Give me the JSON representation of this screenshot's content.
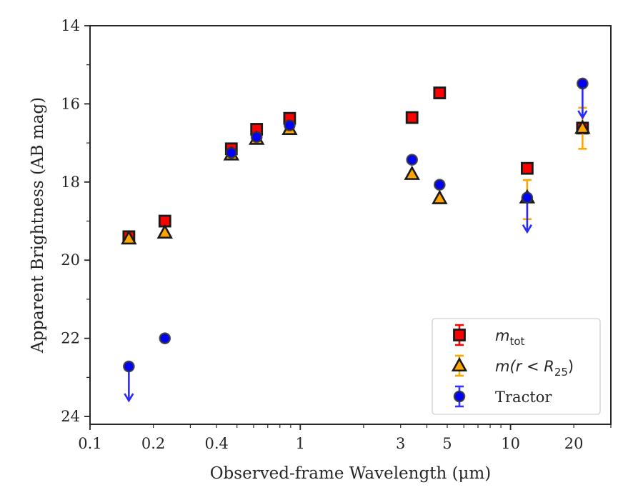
{
  "chart_data": {
    "type": "scatter",
    "title": "",
    "xlabel": "Observed-frame Wavelength (μm)",
    "ylabel": "Apparent Brightness (AB mag)",
    "xscale": "log",
    "xlim": [
      0.1,
      30
    ],
    "ylim": [
      24.2,
      14
    ],
    "y_inverted": true,
    "grid": false,
    "legend_position": "lower-right",
    "x_ticks": [
      {
        "value": 0.1,
        "label": "0.1"
      },
      {
        "value": 0.2,
        "label": "0.2"
      },
      {
        "value": 0.4,
        "label": "0.4"
      },
      {
        "value": 1,
        "label": "1"
      },
      {
        "value": 3,
        "label": "3"
      },
      {
        "value": 5,
        "label": "5"
      },
      {
        "value": 10,
        "label": "10"
      },
      {
        "value": 20,
        "label": "20"
      }
    ],
    "y_ticks": [
      {
        "value": 14,
        "label": "14"
      },
      {
        "value": 16,
        "label": "16"
      },
      {
        "value": 18,
        "label": "18"
      },
      {
        "value": 20,
        "label": "20"
      },
      {
        "value": 22,
        "label": "22"
      },
      {
        "value": 24,
        "label": "24"
      }
    ],
    "series": [
      {
        "name": "m_tot",
        "legend_math": "m",
        "legend_sub": "tot",
        "marker": "square",
        "face_color": "#ff0000",
        "edge_color": "#1a1a1a",
        "error_color": "#ff0000",
        "points": [
          {
            "x": 0.153,
            "y": 19.4
          },
          {
            "x": 0.227,
            "y": 19.0
          },
          {
            "x": 0.47,
            "y": 17.15
          },
          {
            "x": 0.62,
            "y": 16.65
          },
          {
            "x": 0.89,
            "y": 16.37
          },
          {
            "x": 3.4,
            "y": 16.35
          },
          {
            "x": 4.6,
            "y": 15.72
          },
          {
            "x": 12.0,
            "y": 17.65
          },
          {
            "x": 22.0,
            "y": 16.62
          }
        ]
      },
      {
        "name": "m(r < R25)",
        "legend_math": "m(r < R",
        "legend_sub": "25",
        "legend_tail": ")",
        "marker": "triangle",
        "face_color": "#ffa500",
        "edge_color": "#1a1a1a",
        "error_color": "#ffa500",
        "points": [
          {
            "x": 0.153,
            "y": 19.45
          },
          {
            "x": 0.227,
            "y": 19.3
          },
          {
            "x": 0.47,
            "y": 17.3
          },
          {
            "x": 0.62,
            "y": 16.9
          },
          {
            "x": 0.89,
            "y": 16.65
          },
          {
            "x": 3.4,
            "y": 17.8
          },
          {
            "x": 4.6,
            "y": 18.42
          },
          {
            "x": 12.0,
            "y": 18.4,
            "err_low": 17.95,
            "err_high": 18.95
          },
          {
            "x": 22.0,
            "y": 16.62,
            "err_low": 16.1,
            "err_high": 17.15
          }
        ]
      },
      {
        "name": "Tractor",
        "marker": "circle",
        "face_color": "#0000ff",
        "edge_color": "#333333",
        "error_color": "#3333ff",
        "points": [
          {
            "x": 0.153,
            "y": 22.72,
            "upper_limit": true
          },
          {
            "x": 0.227,
            "y": 22.0
          },
          {
            "x": 0.47,
            "y": 17.25
          },
          {
            "x": 0.62,
            "y": 16.85
          },
          {
            "x": 0.89,
            "y": 16.55
          },
          {
            "x": 3.4,
            "y": 17.43
          },
          {
            "x": 4.6,
            "y": 18.07
          },
          {
            "x": 12.0,
            "y": 18.4,
            "upper_limit": true
          },
          {
            "x": 22.0,
            "y": 15.48,
            "upper_limit": true
          }
        ]
      }
    ]
  }
}
